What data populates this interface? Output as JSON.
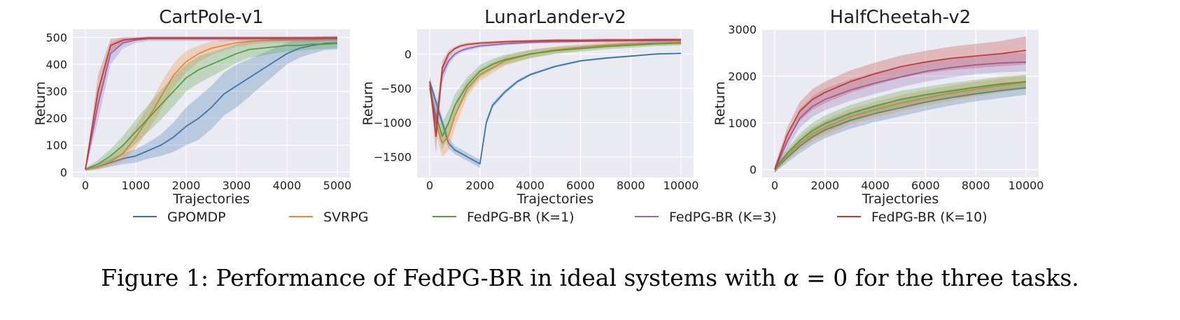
{
  "colors": {
    "plot_bg": "#eaeaf2",
    "grid": "#ffffff",
    "GPOMDP": "#3a76ae",
    "SVRPG": "#ef8636",
    "FedPG-BR (K=1)": "#519e3e",
    "FedPG-BR (K=3)": "#8d69b8",
    "FedPG-BR (K=10)": "#c53a32"
  },
  "legend": [
    "GPOMDP",
    "SVRPG",
    "FedPG-BR (K=1)",
    "FedPG-BR (K=3)",
    "FedPG-BR (K=10)"
  ],
  "caption": {
    "prefix": "Figure 1: Performance of FedPG-BR in ideal systems with ",
    "symbol": "α",
    "equals": " = 0",
    "suffix": " for the three tasks."
  },
  "chart_data": [
    {
      "type": "line",
      "title": "CartPole-v1",
      "xlabel": "Trajectories",
      "ylabel": "Return",
      "xlim": [
        -250,
        5250
      ],
      "ylim": [
        -20,
        530
      ],
      "xticks": [
        0,
        1000,
        2000,
        3000,
        4000,
        5000
      ],
      "yticks": [
        0,
        100,
        200,
        300,
        400,
        500
      ],
      "grid": true,
      "series": [
        {
          "name": "GPOMDP",
          "x": [
            0,
            250,
            500,
            750,
            1000,
            1250,
            1500,
            1750,
            2000,
            2250,
            2500,
            2750,
            3000,
            3250,
            3500,
            3750,
            4000,
            4250,
            4500,
            4750,
            5000
          ],
          "y": [
            10,
            20,
            35,
            50,
            60,
            80,
            100,
            130,
            170,
            200,
            240,
            290,
            320,
            350,
            380,
            410,
            440,
            460,
            470,
            478,
            480
          ],
          "band": [
            5,
            10,
            15,
            20,
            25,
            30,
            40,
            55,
            70,
            80,
            80,
            80,
            80,
            70,
            60,
            50,
            40,
            35,
            30,
            25,
            25
          ]
        },
        {
          "name": "SVRPG",
          "x": [
            0,
            250,
            500,
            750,
            1000,
            1250,
            1500,
            1750,
            2000,
            2250,
            2500,
            2750,
            3000,
            3250,
            3500,
            3750,
            4000,
            4250,
            4500,
            4750,
            5000
          ],
          "y": [
            10,
            20,
            40,
            70,
            130,
            200,
            280,
            360,
            410,
            440,
            460,
            470,
            480,
            485,
            488,
            490,
            490,
            492,
            492,
            495,
            495
          ],
          "band": [
            5,
            10,
            15,
            30,
            40,
            45,
            50,
            45,
            40,
            30,
            25,
            20,
            15,
            12,
            10,
            10,
            10,
            10,
            10,
            10,
            10
          ]
        },
        {
          "name": "FedPG-BR (K=1)",
          "x": [
            0,
            250,
            500,
            750,
            1000,
            1250,
            1500,
            1750,
            2000,
            2250,
            2500,
            2750,
            3000,
            3250,
            3500,
            3750,
            4000,
            4250,
            4500,
            4750,
            5000
          ],
          "y": [
            10,
            30,
            60,
            100,
            150,
            200,
            250,
            300,
            350,
            380,
            400,
            420,
            440,
            455,
            460,
            465,
            470,
            470,
            475,
            475,
            478
          ],
          "band": [
            5,
            15,
            25,
            35,
            45,
            50,
            55,
            55,
            50,
            50,
            45,
            40,
            35,
            30,
            28,
            25,
            22,
            20,
            20,
            18,
            18
          ]
        },
        {
          "name": "FedPG-BR (K=3)",
          "x": [
            0,
            250,
            500,
            750,
            1000,
            1250,
            1500,
            1750,
            2000,
            2500,
            3000,
            3500,
            4000,
            4500,
            5000
          ],
          "y": [
            10,
            250,
            440,
            480,
            490,
            495,
            495,
            495,
            495,
            495,
            495,
            495,
            495,
            495,
            495
          ],
          "band": [
            5,
            60,
            40,
            20,
            10,
            8,
            8,
            8,
            8,
            8,
            8,
            8,
            8,
            8,
            8
          ]
        },
        {
          "name": "FedPG-BR (K=10)",
          "x": [
            0,
            250,
            500,
            750,
            1000,
            1250,
            1500,
            1750,
            2000,
            2500,
            3000,
            3500,
            4000,
            4500,
            5000
          ],
          "y": [
            10,
            300,
            470,
            490,
            495,
            498,
            498,
            498,
            498,
            498,
            498,
            498,
            498,
            498,
            498
          ],
          "band": [
            5,
            60,
            25,
            10,
            6,
            5,
            5,
            5,
            5,
            5,
            5,
            5,
            5,
            5,
            5
          ]
        }
      ]
    },
    {
      "type": "line",
      "title": "LunarLander-v2",
      "xlabel": "Trajectories",
      "ylabel": "Return",
      "xlim": [
        -500,
        10500
      ],
      "ylim": [
        -1800,
        360
      ],
      "xticks": [
        0,
        2000,
        4000,
        6000,
        8000,
        10000
      ],
      "yticks": [
        0,
        -500,
        -1000,
        -1500
      ],
      "grid": true,
      "series": [
        {
          "name": "GPOMDP",
          "x": [
            0,
            250,
            500,
            750,
            1000,
            1250,
            1500,
            1750,
            2000,
            2250,
            2500,
            3000,
            3500,
            4000,
            5000,
            6000,
            7000,
            8000,
            9000,
            10000
          ],
          "y": [
            -400,
            -700,
            -1000,
            -1300,
            -1400,
            -1450,
            -1500,
            -1550,
            -1600,
            -1000,
            -750,
            -550,
            -400,
            -300,
            -180,
            -100,
            -60,
            -30,
            0,
            10
          ],
          "band": [
            50,
            80,
            80,
            80,
            60,
            60,
            60,
            60,
            60,
            50,
            40,
            30,
            25,
            20,
            15,
            15,
            12,
            12,
            10,
            10
          ]
        },
        {
          "name": "SVRPG",
          "x": [
            0,
            250,
            500,
            750,
            1000,
            1250,
            1500,
            1750,
            2000,
            2500,
            3000,
            4000,
            5000,
            6000,
            7000,
            8000,
            9000,
            10000
          ],
          "y": [
            -500,
            -1000,
            -1300,
            -1200,
            -900,
            -700,
            -500,
            -400,
            -300,
            -200,
            -100,
            0,
            60,
            100,
            130,
            150,
            160,
            170
          ],
          "band": [
            80,
            150,
            200,
            200,
            180,
            150,
            120,
            100,
            90,
            80,
            70,
            60,
            50,
            45,
            40,
            40,
            35,
            35
          ]
        },
        {
          "name": "FedPG-BR (K=1)",
          "x": [
            0,
            250,
            500,
            750,
            1000,
            1250,
            1500,
            1750,
            2000,
            2500,
            3000,
            4000,
            5000,
            6000,
            7000,
            8000,
            9000,
            10000
          ],
          "y": [
            -500,
            -900,
            -1200,
            -1000,
            -750,
            -600,
            -450,
            -350,
            -250,
            -150,
            -80,
            0,
            50,
            80,
            110,
            130,
            150,
            160
          ],
          "band": [
            80,
            150,
            200,
            180,
            160,
            140,
            120,
            100,
            90,
            80,
            70,
            60,
            50,
            45,
            40,
            40,
            35,
            35
          ]
        },
        {
          "name": "FedPG-BR (K=3)",
          "x": [
            0,
            250,
            500,
            750,
            1000,
            1250,
            1500,
            2000,
            3000,
            4000,
            5000,
            6000,
            7000,
            8000,
            9000,
            10000
          ],
          "y": [
            -450,
            -1000,
            -300,
            -100,
            0,
            50,
            80,
            120,
            150,
            170,
            180,
            185,
            190,
            195,
            195,
            200
          ],
          "band": [
            80,
            200,
            120,
            60,
            40,
            30,
            30,
            25,
            20,
            20,
            20,
            20,
            20,
            20,
            20,
            20
          ]
        },
        {
          "name": "FedPG-BR (K=10)",
          "x": [
            0,
            250,
            500,
            750,
            1000,
            1250,
            1500,
            2000,
            3000,
            4000,
            5000,
            6000,
            7000,
            8000,
            9000,
            10000
          ],
          "y": [
            -400,
            -1200,
            -200,
            0,
            80,
            120,
            140,
            160,
            180,
            190,
            200,
            200,
            205,
            205,
            210,
            210
          ],
          "band": [
            80,
            250,
            100,
            50,
            30,
            25,
            25,
            20,
            20,
            20,
            20,
            20,
            20,
            20,
            20,
            20
          ]
        }
      ]
    },
    {
      "type": "line",
      "title": "HalfCheetah-v2",
      "xlabel": "Trajectories",
      "ylabel": "Return",
      "xlim": [
        -500,
        10500
      ],
      "ylim": [
        -170,
        3000
      ],
      "xticks": [
        0,
        2000,
        4000,
        6000,
        8000,
        10000
      ],
      "yticks": [
        0,
        1000,
        2000,
        3000
      ],
      "grid": true,
      "series": [
        {
          "name": "GPOMDP",
          "x": [
            0,
            500,
            1000,
            1500,
            2000,
            3000,
            4000,
            5000,
            6000,
            7000,
            8000,
            9000,
            10000
          ],
          "y": [
            0,
            250,
            500,
            700,
            850,
            1050,
            1200,
            1320,
            1440,
            1540,
            1620,
            1690,
            1750
          ],
          "band": [
            60,
            100,
            150,
            170,
            180,
            180,
            180,
            180,
            180,
            170,
            160,
            160,
            150
          ]
        },
        {
          "name": "SVRPG",
          "x": [
            0,
            500,
            1000,
            1500,
            2000,
            3000,
            4000,
            5000,
            6000,
            7000,
            8000,
            9000,
            10000
          ],
          "y": [
            0,
            300,
            560,
            760,
            900,
            1130,
            1280,
            1420,
            1530,
            1630,
            1720,
            1800,
            1870
          ],
          "band": [
            60,
            100,
            140,
            160,
            170,
            170,
            170,
            170,
            170,
            160,
            160,
            150,
            150
          ]
        },
        {
          "name": "FedPG-BR (K=1)",
          "x": [
            0,
            500,
            1000,
            1500,
            2000,
            3000,
            4000,
            5000,
            6000,
            7000,
            8000,
            9000,
            10000
          ],
          "y": [
            0,
            350,
            620,
            830,
            980,
            1200,
            1360,
            1500,
            1600,
            1680,
            1760,
            1830,
            1880
          ],
          "band": [
            60,
            110,
            150,
            170,
            180,
            180,
            180,
            180,
            170,
            170,
            160,
            160,
            150
          ]
        },
        {
          "name": "FedPG-BR (K=3)",
          "x": [
            0,
            500,
            1000,
            1500,
            2000,
            3000,
            4000,
            5000,
            6000,
            7000,
            8000,
            9000,
            10000
          ],
          "y": [
            0,
            600,
            1100,
            1350,
            1500,
            1700,
            1850,
            1980,
            2100,
            2180,
            2240,
            2280,
            2300
          ],
          "band": [
            80,
            150,
            200,
            220,
            230,
            230,
            230,
            220,
            220,
            210,
            200,
            200,
            200
          ]
        },
        {
          "name": "FedPG-BR (K=10)",
          "x": [
            0,
            500,
            1000,
            1500,
            2000,
            3000,
            4000,
            5000,
            6000,
            7000,
            8000,
            9000,
            10000
          ],
          "y": [
            0,
            750,
            1250,
            1500,
            1650,
            1880,
            2050,
            2200,
            2300,
            2380,
            2430,
            2480,
            2550
          ],
          "band": [
            80,
            150,
            200,
            220,
            230,
            240,
            240,
            240,
            240,
            250,
            260,
            270,
            300
          ]
        }
      ]
    }
  ]
}
